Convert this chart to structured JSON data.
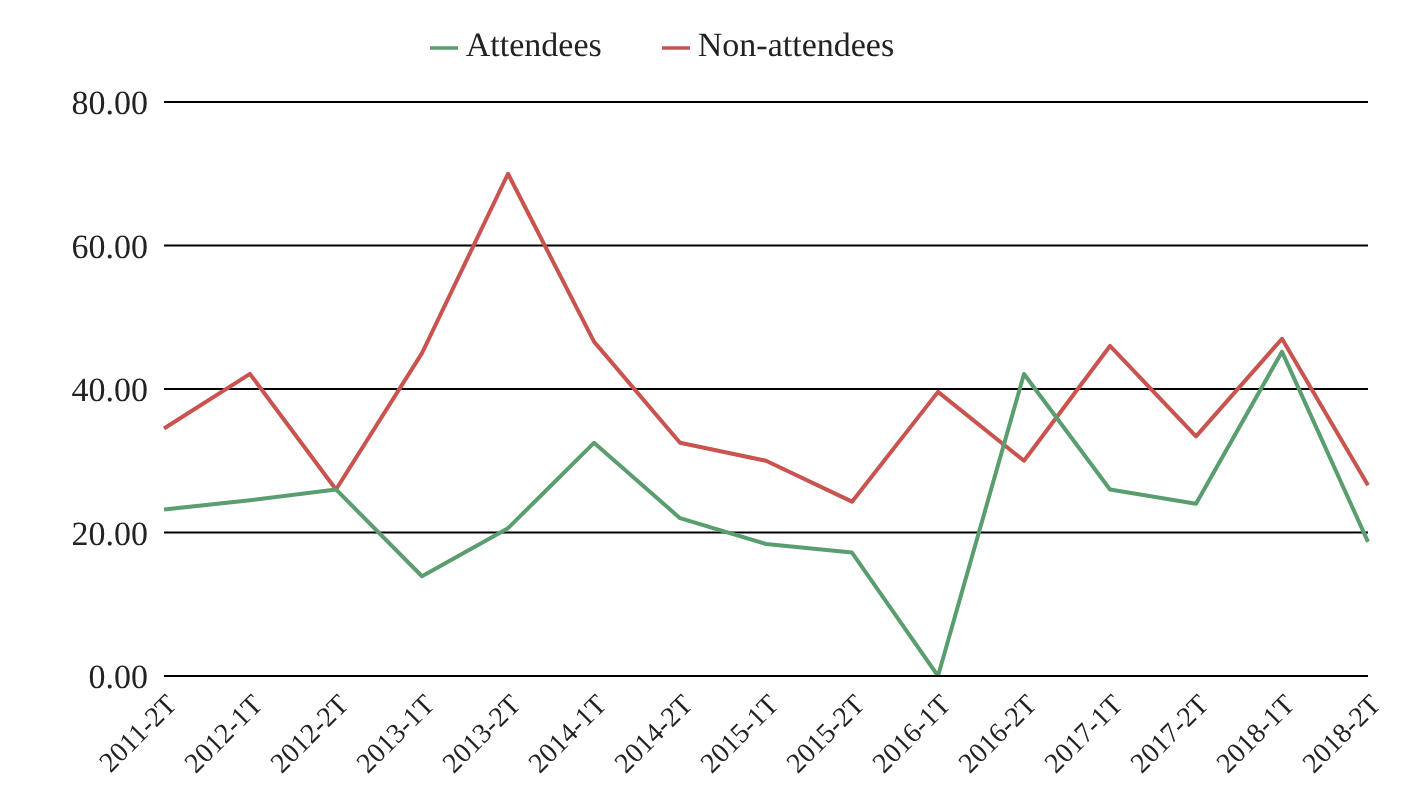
{
  "chart_data": {
    "type": "line",
    "categories": [
      "2011-2T",
      "2012-1T",
      "2012-2T",
      "2013-1T",
      "2013-2T",
      "2014-1T",
      "2014-2T",
      "2015-1T",
      "2015-2T",
      "2016-1T",
      "2016-2T",
      "2017-1T",
      "2017-2T",
      "2018-1T",
      "2018-2T"
    ],
    "series": [
      {
        "name": "Non-attendees",
        "color": "#c9534f",
        "values": [
          34.5,
          42.1,
          26,
          45,
          70,
          46.6,
          32.5,
          30,
          24.3,
          39.6,
          30,
          46,
          33.4,
          47,
          26.6
        ]
      },
      {
        "name": "Attendees",
        "color": "#5a9e6f",
        "values": [
          23.2,
          24.5,
          26,
          13.9,
          20.6,
          32.5,
          22,
          18.4,
          17.2,
          0,
          42.1,
          26,
          24,
          45.2,
          18.7
        ]
      }
    ],
    "ylim": [
      0,
      80
    ],
    "yticks": [
      {
        "value": 0,
        "label": "0.00"
      },
      {
        "value": 20,
        "label": "20.00"
      },
      {
        "value": 40,
        "label": "40.00"
      },
      {
        "value": 60,
        "label": "60.00"
      },
      {
        "value": 80,
        "label": "80.00"
      }
    ],
    "grid": "y",
    "legend": "top",
    "marker": "none",
    "line_style": "solid"
  }
}
